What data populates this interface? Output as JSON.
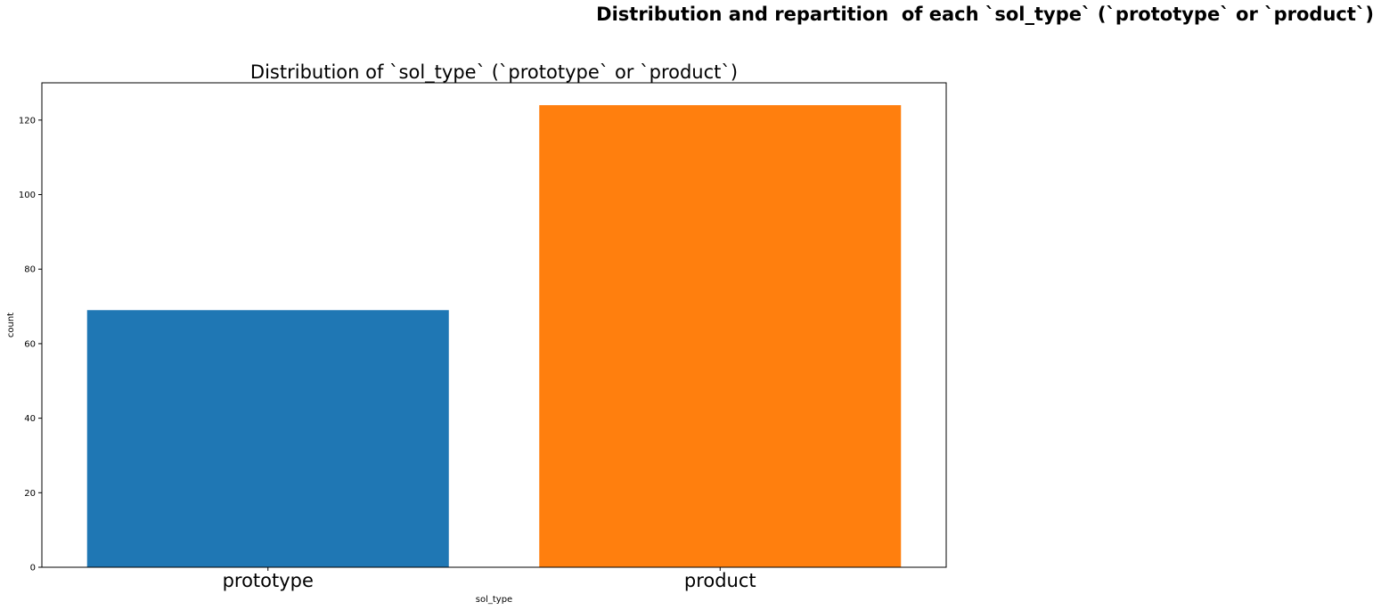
{
  "figure": {
    "suptitle": "Distribution and repartition  of each `sol_type` (`prototype` or `product`)"
  },
  "chart_data": {
    "type": "bar",
    "title": "Distribution of `sol_type` (`prototype` or `product`)",
    "xlabel": "sol_type",
    "ylabel": "count",
    "categories": [
      "prototype",
      "product"
    ],
    "values": [
      69,
      124
    ],
    "colors": [
      "#1f77b4",
      "#ff7f0e"
    ],
    "ylim": [
      0,
      130
    ],
    "yticks": [
      0,
      20,
      40,
      60,
      80,
      100,
      120
    ],
    "grid": false,
    "legend": "none"
  }
}
